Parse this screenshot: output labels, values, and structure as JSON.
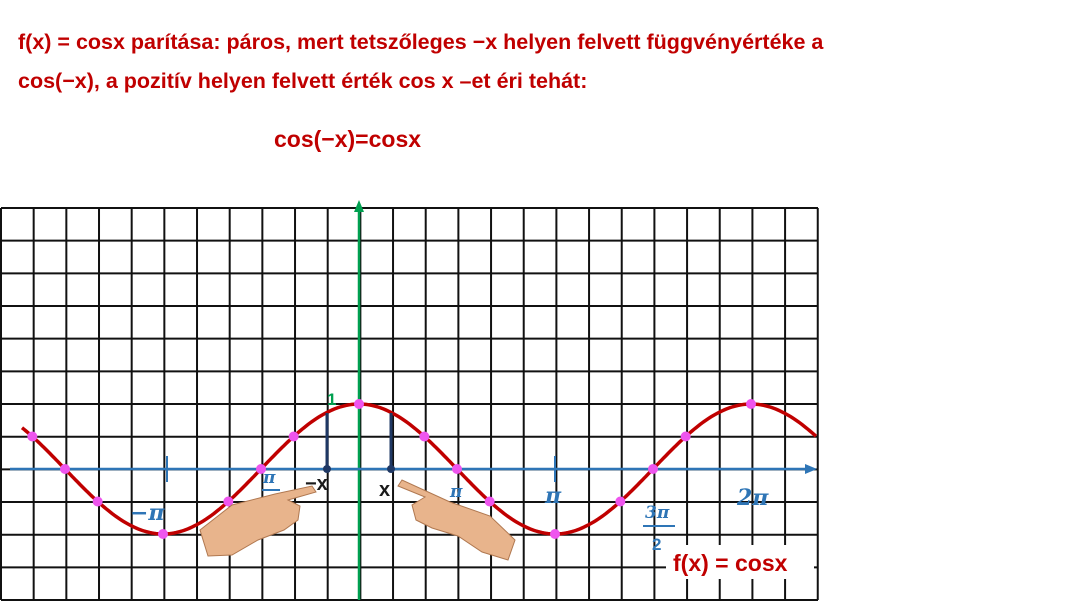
{
  "header": {
    "lines": [
      "f(x) = cosx parítása: páros, mert tetszőleges −x helyen felvett függvényértéke a",
      "cos(−x), a pozitív helyen felvett érték cos x –et éri tehát:"
    ]
  },
  "equation": "cos(−x)=cosx",
  "graph": {
    "labels": {
      "one": "1",
      "minus_pi": "−π",
      "minus_half_pi": "π",
      "half_pi": "π",
      "pi": "π",
      "three_half_pi_num": "3π",
      "three_half_pi_den": "2",
      "two_pi": "2π",
      "minus_x": "−x",
      "x": "x",
      "function": "f(x) = cosx"
    }
  }
}
